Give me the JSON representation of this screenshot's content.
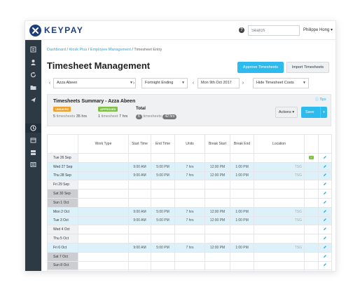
{
  "app": {
    "name": "KEYPAY"
  },
  "topbar": {
    "search_placeholder": "Search",
    "user": "Philippe Hong ▾",
    "help": "?"
  },
  "breadcrumb": [
    "Dashboard",
    "Kiosk Plus",
    "Employee Management",
    "Timesheet Entry"
  ],
  "page_title": "Timesheet Management",
  "buttons": {
    "approve": "Approve Timesheets",
    "import": "Import Timesheets",
    "actions": "Actions ▾",
    "save": "Save",
    "save_caret": "▾"
  },
  "filters": {
    "employee": "Azza Abeen",
    "period": "Fortnight Ending",
    "date": "Mon 9th Oct 2017",
    "costs": "Hide Timesheet Costs"
  },
  "summary": {
    "title": "Timesheets Summary - Azza Abeen",
    "tips": "Tips",
    "unsaved_badge": "UNSAVED",
    "approved_badge": "APPROVED",
    "total_label": "Total",
    "unsaved_count": "5",
    "unsaved_text": "timesheets",
    "unsaved_hrs": "35 hrs",
    "approved_count": "1",
    "approved_text": "timesheet",
    "approved_hrs": "7 hrs",
    "total_count": "6",
    "total_text": "timesheets",
    "total_hrs": "42 hrs"
  },
  "grid": {
    "headers": [
      "",
      "Work Type",
      "Start Time",
      "End Time",
      "Units",
      "Break Start",
      "Break End",
      "Location",
      "",
      ""
    ],
    "rows": [
      {
        "day": "Tue 26 Sep",
        "start": "",
        "end": "",
        "units": "",
        "bstart": "",
        "bend": "",
        "loc": "",
        "weekend": false,
        "filled": false,
        "badge": true
      },
      {
        "day": "Wed 27 Sep",
        "start": "9:00 AM",
        "end": "5:00 PM",
        "units": "7 hrs",
        "bstart": "12:00 PM",
        "bend": "1:00 PM",
        "loc": "TSG",
        "weekend": false,
        "filled": true,
        "badge": false
      },
      {
        "day": "Thu 28 Sep",
        "start": "9:00 AM",
        "end": "5:00 PM",
        "units": "7 hrs",
        "bstart": "12:00 PM",
        "bend": "1:00 PM",
        "loc": "TSG",
        "weekend": false,
        "filled": true,
        "badge": false
      },
      {
        "day": "Fri 29 Sep",
        "start": "",
        "end": "",
        "units": "",
        "bstart": "",
        "bend": "",
        "loc": "",
        "weekend": false,
        "filled": false,
        "badge": false
      },
      {
        "day": "Sat 30 Sep",
        "start": "",
        "end": "",
        "units": "",
        "bstart": "",
        "bend": "",
        "loc": "",
        "weekend": true,
        "filled": false,
        "badge": false
      },
      {
        "day": "Sun 1 Oct",
        "start": "",
        "end": "",
        "units": "",
        "bstart": "",
        "bend": "",
        "loc": "",
        "weekend": true,
        "filled": false,
        "badge": false
      },
      {
        "day": "Mon 2 Oct",
        "start": "9:00 AM",
        "end": "5:00 PM",
        "units": "7 hrs",
        "bstart": "12:00 PM",
        "bend": "1:00 PM",
        "loc": "TSG",
        "weekend": false,
        "filled": true,
        "badge": false
      },
      {
        "day": "Tue 3 Oct",
        "start": "9:00 AM",
        "end": "5:00 PM",
        "units": "7 hrs",
        "bstart": "12:00 PM",
        "bend": "1:00 PM",
        "loc": "TSG",
        "weekend": false,
        "filled": true,
        "badge": false
      },
      {
        "day": "Wed 4 Oct",
        "start": "",
        "end": "",
        "units": "",
        "bstart": "",
        "bend": "",
        "loc": "",
        "weekend": false,
        "filled": false,
        "badge": false
      },
      {
        "day": "Thu 5 Oct",
        "start": "",
        "end": "",
        "units": "",
        "bstart": "",
        "bend": "",
        "loc": "",
        "weekend": false,
        "filled": false,
        "badge": false
      },
      {
        "day": "Fri 6 Oct",
        "start": "9:00 AM",
        "end": "5:00 PM",
        "units": "7 hrs",
        "bstart": "12:00 PM",
        "bend": "1:00 PM",
        "loc": "TSG",
        "weekend": false,
        "filled": true,
        "badge": false
      },
      {
        "day": "Sat 7 Oct",
        "start": "",
        "end": "",
        "units": "",
        "bstart": "",
        "bend": "",
        "loc": "",
        "weekend": true,
        "filled": false,
        "badge": false
      },
      {
        "day": "Sun 8 Oct",
        "start": "",
        "end": "",
        "units": "",
        "bstart": "",
        "bend": "",
        "loc": "",
        "weekend": true,
        "filled": false,
        "badge": false
      },
      {
        "day": "Mon 9 Oct",
        "start": "",
        "end": "",
        "units": "",
        "bstart": "",
        "bend": "",
        "loc": "",
        "weekend": false,
        "filled": false,
        "badge": false
      }
    ],
    "first_row_badge": "✓"
  },
  "sidebar": {
    "icons": [
      "list-icon",
      "user-icon",
      "refresh-icon",
      "folder-icon",
      "plane-icon",
      "clock-icon",
      "calendar-icon",
      "grid-icon",
      "report-icon"
    ],
    "active_index": 5
  },
  "colors": {
    "accent": "#2dbbee",
    "brand": "#1f3f7a",
    "sidebar": "#2d3a44",
    "unsaved": "#f0a12b",
    "approved": "#7dc244"
  }
}
